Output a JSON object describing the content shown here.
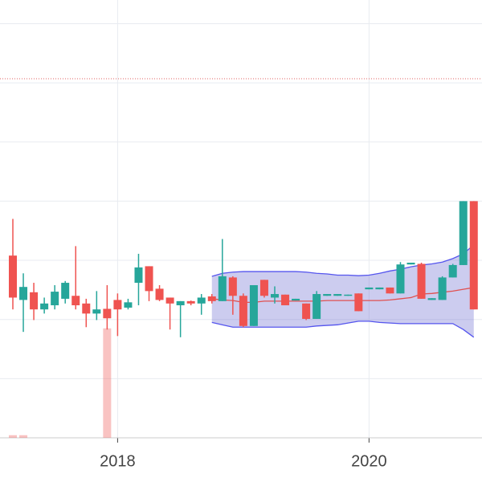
{
  "chart_data": {
    "type": "candlestick",
    "categories": [
      null,
      null,
      null,
      null,
      null,
      null,
      null,
      null,
      null,
      null,
      "2018",
      null,
      null,
      null,
      null,
      null,
      null,
      null,
      null,
      null,
      null,
      null,
      null,
      null,
      null,
      null,
      null,
      null,
      null,
      null,
      null,
      null,
      null,
      null,
      "2020",
      null,
      null,
      null,
      null,
      null,
      null,
      null,
      null,
      null,
      null
    ],
    "open": [
      30.8,
      23.3,
      24.6,
      21.7,
      22.4,
      23.5,
      24.0,
      22.7,
      21.0,
      21.8,
      23.3,
      22.0,
      26.2,
      29.0,
      25.2,
      23.7,
      22.4,
      23.1,
      22.7,
      23.9,
      23.1,
      27.1,
      24.0,
      18.9,
      26.7,
      23.7,
      24.2,
      23.2,
      22.7,
      20.1,
      24.0,
      24.0,
      24.0,
      24.4,
      25.1,
      25.1,
      25.4,
      24.4,
      29.3,
      29.4,
      23.3,
      23.3,
      27.1,
      29.2,
      40.0
    ],
    "high": [
      37.0,
      27.8,
      26.2,
      23.7,
      25.8,
      26.5,
      32.4,
      23.5,
      24.8,
      25.8,
      24.4,
      23.5,
      31.1,
      29.0,
      25.8,
      23.7,
      23.1,
      23.2,
      24.3,
      24.3,
      33.6,
      27.3,
      24.4,
      25.8,
      26.7,
      25.6,
      24.2,
      23.5,
      22.7,
      24.8,
      24.3,
      24.3,
      24.2,
      24.4,
      25.4,
      25.4,
      25.4,
      29.7,
      29.6,
      29.6,
      23.6,
      27.3,
      29.4,
      40.0,
      40.0
    ],
    "low": [
      21.7,
      17.9,
      19.9,
      21.0,
      21.7,
      22.7,
      21.7,
      18.7,
      19.9,
      18.3,
      17.2,
      21.7,
      22.4,
      23.1,
      23.1,
      18.3,
      17.0,
      22.4,
      20.8,
      22.7,
      23.1,
      20.8,
      18.7,
      18.9,
      23.7,
      22.7,
      22.4,
      23.2,
      19.9,
      20.1,
      24.0,
      24.0,
      24.0,
      21.4,
      25.1,
      25.1,
      24.4,
      24.4,
      29.3,
      23.5,
      23.3,
      23.3,
      27.1,
      29.2,
      21.7
    ],
    "close": [
      23.7,
      25.5,
      21.7,
      22.7,
      24.7,
      26.2,
      22.4,
      21.0,
      21.7,
      20.2,
      21.7,
      22.9,
      28.8,
      24.8,
      23.3,
      22.7,
      23.1,
      22.7,
      23.7,
      23.1,
      27.3,
      24.0,
      18.9,
      25.8,
      24.0,
      24.3,
      22.4,
      23.5,
      20.1,
      24.3,
      24.3,
      24.3,
      24.2,
      21.4,
      25.4,
      25.4,
      24.4,
      29.3,
      29.6,
      23.5,
      23.6,
      27.1,
      29.2,
      40.0,
      21.7
    ],
    "increasing_color": "#26a69a",
    "decreasing_color": "#ef5350",
    "bands": {
      "color": "#5555ee",
      "fill": "rgba(110,110,210,0.35)",
      "middle_color": "#e05050",
      "upper": [
        null,
        null,
        null,
        null,
        null,
        null,
        null,
        null,
        null,
        null,
        null,
        null,
        null,
        null,
        null,
        null,
        null,
        null,
        null,
        27.3,
        27.8,
        28.0,
        28.1,
        28.1,
        28.1,
        28.1,
        28.1,
        28.1,
        28.0,
        27.8,
        27.7,
        27.5,
        27.5,
        27.4,
        27.5,
        27.8,
        28.2,
        28.5,
        28.9,
        29.2,
        29.4,
        29.7,
        30.3,
        31.1,
        32.6
      ],
      "middle": [
        null,
        null,
        null,
        null,
        null,
        null,
        null,
        null,
        null,
        null,
        null,
        null,
        null,
        null,
        null,
        null,
        null,
        null,
        null,
        23.5,
        23.3,
        23.2,
        22.9,
        22.9,
        23.1,
        23.1,
        23.1,
        23.1,
        23.1,
        23.1,
        23.2,
        23.2,
        23.2,
        23.2,
        23.2,
        23.2,
        23.3,
        23.5,
        23.7,
        24.3,
        24.4,
        24.6,
        24.8,
        25.1,
        25.4
      ],
      "lower": [
        null,
        null,
        null,
        null,
        null,
        null,
        null,
        null,
        null,
        null,
        null,
        null,
        null,
        null,
        null,
        null,
        null,
        null,
        null,
        19.5,
        19.1,
        18.7,
        18.7,
        18.7,
        18.7,
        18.7,
        18.7,
        18.7,
        18.7,
        18.9,
        19.0,
        19.1,
        19.4,
        19.7,
        19.7,
        19.5,
        19.4,
        19.3,
        19.3,
        19.3,
        19.3,
        19.3,
        19.3,
        18.3,
        17.0
      ]
    },
    "volume": [
      0.6,
      0.6,
      0,
      0,
      0,
      0,
      0,
      0,
      0,
      25,
      0,
      0,
      0,
      0,
      0,
      0,
      0,
      0,
      0,
      0,
      0,
      0,
      0,
      0,
      0,
      0,
      0,
      0,
      0,
      0,
      0,
      0,
      0,
      0,
      0,
      0,
      0,
      0,
      0,
      0,
      0,
      0,
      0,
      0,
      0
    ],
    "volume_color": "rgba(239,83,80,0.35)",
    "y2lim": [
      0,
      100
    ],
    "reference_line": {
      "value": 60.7,
      "color": "#e06060"
    },
    "ylim": [
      0,
      74
    ],
    "yticks": [
      0,
      10,
      20,
      30,
      40,
      50,
      60,
      70
    ],
    "grid": true
  }
}
